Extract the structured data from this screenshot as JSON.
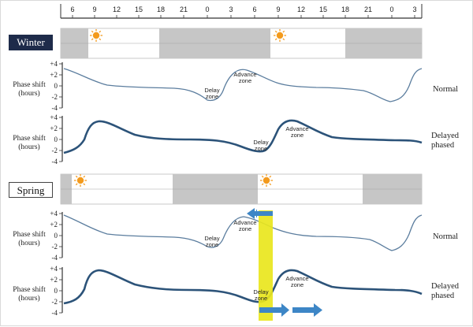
{
  "hours": [
    "6",
    "9",
    "12",
    "15",
    "18",
    "21",
    "0",
    "3",
    "6",
    "9",
    "12",
    "15",
    "18",
    "21",
    "0",
    "3"
  ],
  "seasons": {
    "winter": "Winter",
    "spring": "Spring"
  },
  "axis": {
    "title_line1": "Phase shift",
    "title_line2": "(hours)",
    "ticks": [
      "+4",
      "+2",
      "0",
      "-2",
      "-4"
    ]
  },
  "labels": {
    "normal": "Normal",
    "delayed_line1": "Delayed",
    "delayed_winter_line2": "phased",
    "delayed_spring_line2": "phased"
  },
  "zones": {
    "delay_line1": "Delay",
    "delay_line2": "zone",
    "advance_line1": "Advance",
    "advance_line2": "zone"
  },
  "colors": {
    "dark_bar": "#c6c6c6",
    "light_bar": "#ffffff",
    "normal_curve": "#5b7d9e",
    "delayed_curve": "#2c5379",
    "highlight": "#e9e61d",
    "arrow": "#3d86c6",
    "sun": "#f39a1c"
  },
  "icons": [
    "sun-icon"
  ]
}
